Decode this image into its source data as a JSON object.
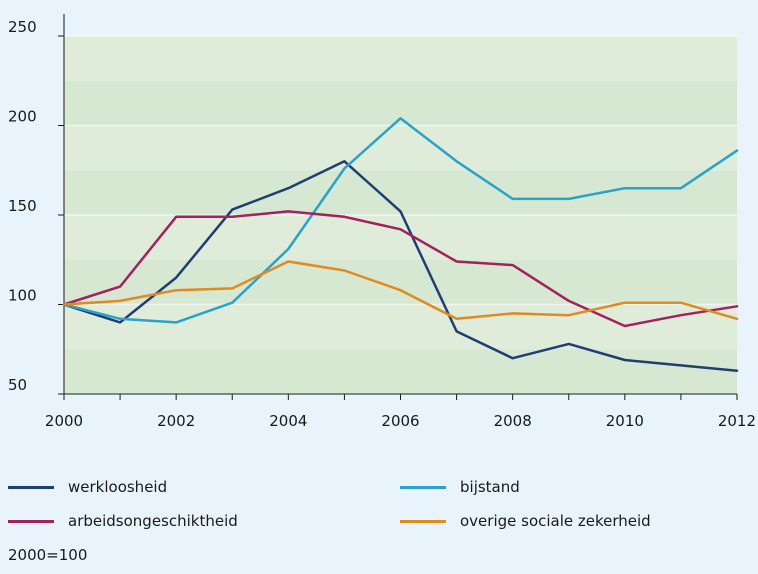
{
  "chart_data": {
    "type": "line",
    "x": [
      2000,
      2001,
      2002,
      2003,
      2004,
      2005,
      2006,
      2007,
      2008,
      2009,
      2010,
      2011,
      2012
    ],
    "xticks": [
      "2000",
      "2002",
      "2004",
      "2006",
      "2008",
      "2010",
      "2012"
    ],
    "xlim": [
      2000,
      2012
    ],
    "yticks": [
      "50",
      "100",
      "150",
      "200",
      "250"
    ],
    "ylim": [
      50,
      250
    ],
    "grid": true,
    "band_colors": [
      "#d6e8d2",
      "#deecd9"
    ],
    "series": [
      {
        "name": "werkloosheid",
        "color": "#1f3f73",
        "values": [
          100,
          90,
          115,
          153,
          165,
          180,
          152,
          85,
          70,
          78,
          69,
          66,
          63
        ]
      },
      {
        "name": "bijstand",
        "color": "#27a3cc",
        "values": [
          100,
          92,
          90,
          101,
          131,
          176,
          204,
          180,
          159,
          159,
          165,
          165,
          186
        ]
      },
      {
        "name": "arbeidsongeschiktheid",
        "color": "#a3215c",
        "values": [
          100,
          110,
          149,
          149,
          152,
          149,
          142,
          124,
          122,
          102,
          88,
          94,
          99
        ]
      },
      {
        "name": "overige sociale zekerheid",
        "color": "#e08a20",
        "values": [
          100,
          102,
          108,
          109,
          124,
          119,
          108,
          92,
          95,
          94,
          101,
          101,
          92
        ]
      }
    ]
  },
  "note": "2000=100"
}
